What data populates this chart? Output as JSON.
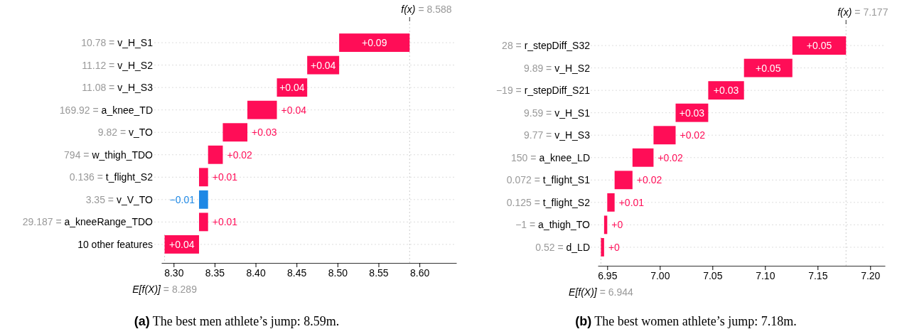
{
  "chart_data": [
    {
      "type": "bar",
      "orientation": "horizontal",
      "title": "(a) The best men athlete’s jump: 8.59m.",
      "categories": [
        "10.78 = v_H_S1",
        "11.12 = v_H_S2",
        "11.08 = v_H_S3",
        "169.92 = a_knee_TD",
        "9.82 = v_TO",
        "794 = w_thigh_TDO",
        "0.136 = t_flight_S2",
        "3.35 = v_V_TO",
        "29.187 = a_kneeRange_TDO",
        "10 other features"
      ],
      "values": [
        0.086,
        0.039,
        0.037,
        0.036,
        0.03,
        0.018,
        0.011,
        -0.011,
        0.011,
        0.042
      ],
      "base": [
        8.502,
        8.463,
        8.426,
        8.39,
        8.36,
        8.342,
        8.331,
        8.342,
        8.331,
        8.289
      ],
      "colors": [
        "#ff0d57",
        "#ff0d57",
        "#ff0d57",
        "#ff0d57",
        "#ff0d57",
        "#ff0d57",
        "#ff0d57",
        "#1e88e5",
        "#ff0d57",
        "#ff0d57"
      ],
      "value_labels": [
        "+0.09",
        "+0.04",
        "+0.04",
        "+0.04",
        "+0.03",
        "+0.02",
        "+0.01",
        "−0.01",
        "+0.01",
        "+0.04"
      ],
      "xlim": [
        8.285,
        8.645
      ],
      "xticks": [
        {
          "value": 8.3,
          "label": "8.30"
        },
        {
          "value": 8.35,
          "label": "8.35"
        },
        {
          "value": 8.4,
          "label": "8.40"
        },
        {
          "value": 8.45,
          "label": "8.45"
        },
        {
          "value": 8.5,
          "label": "8.50"
        },
        {
          "value": 8.55,
          "label": "8.55"
        },
        {
          "value": 8.6,
          "label": "8.60"
        }
      ],
      "ref_lines": [
        {
          "axis": "x",
          "value": 8.588,
          "label": "f(x) = 8.588",
          "color": "#cccccc",
          "line_style": "dotted"
        },
        {
          "axis": "x",
          "value": 8.289,
          "label": "E[f(X)] = 8.289",
          "color": "#cccccc",
          "line_style": "dotted"
        }
      ],
      "grid": "y",
      "tick_labels": "x"
    },
    {
      "type": "bar",
      "orientation": "horizontal",
      "title": "(b) The best women athlete’s jump: 7.18m.",
      "categories": [
        "28 = r_stepDiff_S32",
        "9.89 = v_H_S2",
        "−19 = r_stepDiff_S21",
        "9.59 = v_H_S1",
        "9.77 = v_H_S3",
        "150 = a_knee_LD",
        "0.072 = t_flight_S1",
        "0.125 = t_flight_S2",
        "−1 = a_thigh_TO",
        "0.52 = d_LD"
      ],
      "values": [
        0.051,
        0.046,
        0.034,
        0.031,
        0.021,
        0.02,
        0.017,
        0.007,
        0.003,
        0.003
      ],
      "base": [
        7.126,
        7.08,
        7.046,
        7.015,
        6.994,
        6.974,
        6.957,
        6.95,
        6.947,
        6.944
      ],
      "colors": [
        "#ff0d57",
        "#ff0d57",
        "#ff0d57",
        "#ff0d57",
        "#ff0d57",
        "#ff0d57",
        "#ff0d57",
        "#ff0d57",
        "#ff0d57",
        "#ff0d57"
      ],
      "value_labels": [
        "+0.05",
        "+0.05",
        "+0.03",
        "+0.03",
        "+0.02",
        "+0.02",
        "+0.02",
        "+0.01",
        "+0",
        "+0"
      ],
      "xlim": [
        6.941,
        7.214
      ],
      "xticks": [
        {
          "value": 6.95,
          "label": "6.95"
        },
        {
          "value": 7.0,
          "label": "7.00"
        },
        {
          "value": 7.05,
          "label": "7.05"
        },
        {
          "value": 7.1,
          "label": "7.10"
        },
        {
          "value": 7.15,
          "label": "7.15"
        },
        {
          "value": 7.2,
          "label": "7.20"
        }
      ],
      "ref_lines": [
        {
          "axis": "x",
          "value": 7.177,
          "label": "f(x) = 7.177",
          "color": "#cccccc",
          "line_style": "dotted"
        },
        {
          "axis": "x",
          "value": 6.944,
          "label": "E[f(X)] = 6.944",
          "color": "#cccccc",
          "line_style": "dotted"
        }
      ],
      "grid": "y",
      "tick_labels": "x"
    }
  ]
}
